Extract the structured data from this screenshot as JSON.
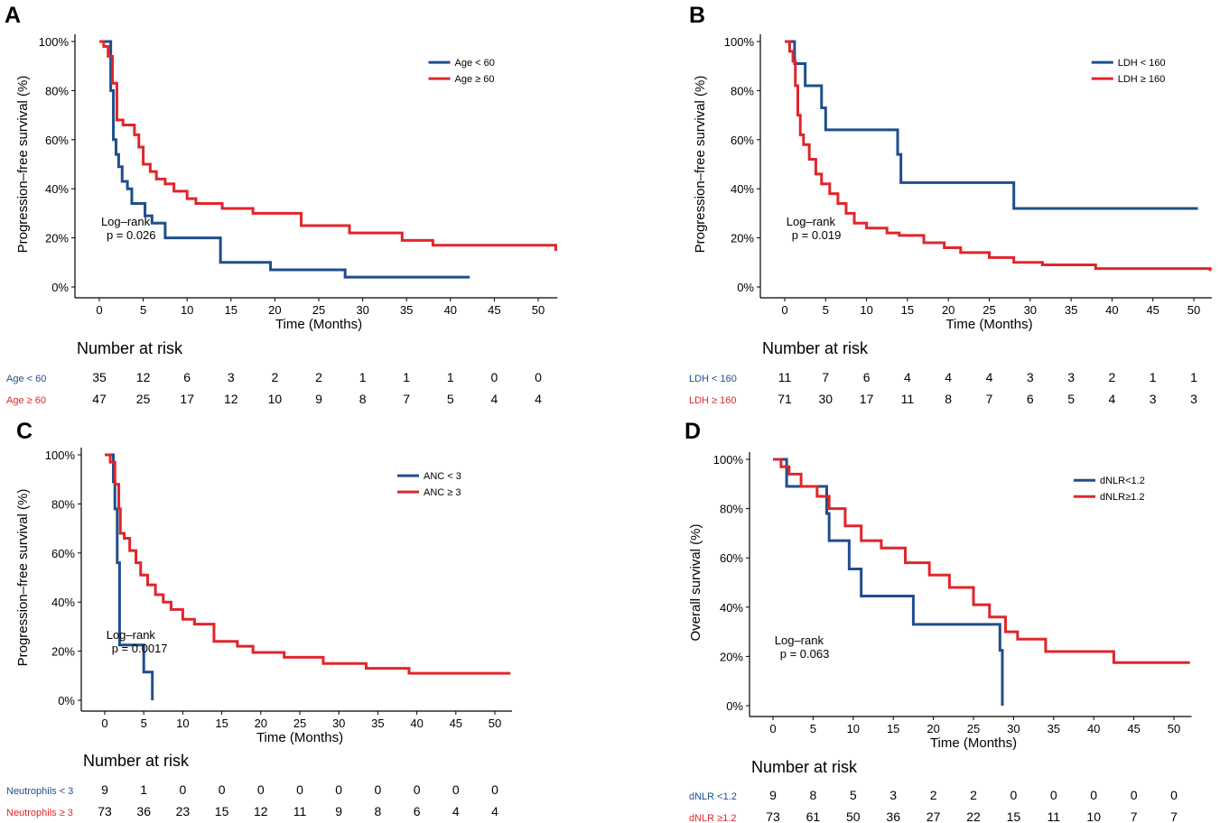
{
  "colors": {
    "blue": "#1f4e8c",
    "red": "#e0262b",
    "axis": "#000000"
  },
  "common": {
    "xlabel": "Time (Months)",
    "risk_title": "Number at risk",
    "x_ticks": [
      "0",
      "5",
      "10",
      "15",
      "20",
      "25",
      "30",
      "35",
      "40",
      "45",
      "50"
    ],
    "y_ticks": [
      "0%",
      "20%",
      "40%",
      "60%",
      "80%",
      "100%"
    ],
    "logrank_label": "Log–rank"
  },
  "chart_data": [
    {
      "panel_letter": "A",
      "type": "line",
      "title": "",
      "xlabel": "Time (Months)",
      "ylabel": "Progression–free survival (%)",
      "xlim": [
        -2,
        52
      ],
      "ylim": [
        0,
        100
      ],
      "legend_position": "top-right",
      "pvalue": "p = 0.026",
      "series": [
        {
          "name": "Age < 60",
          "risk_label": "Age < 60",
          "color": "#1f4e8c",
          "x": [
            0,
            1.3,
            1.6,
            1.9,
            2.2,
            2.6,
            3.2,
            3.7,
            4.2,
            5.2,
            6.0,
            7.5,
            13.8,
            19.5,
            28.0,
            42.2
          ],
          "y": [
            100,
            80,
            60,
            54,
            49,
            43,
            40,
            34,
            34,
            29,
            26,
            20,
            10,
            7,
            4,
            4
          ],
          "risk": [
            "35",
            "12",
            "6",
            "3",
            "2",
            "2",
            "1",
            "1",
            "1",
            "0",
            "0"
          ]
        },
        {
          "name": "Age ≥ 60",
          "risk_label": "Age ≥ 60",
          "color": "#e0262b",
          "x": [
            0,
            0.5,
            1.0,
            1.5,
            2.0,
            2.7,
            4.0,
            4.5,
            5.0,
            5.8,
            6.5,
            7.5,
            8.5,
            10.0,
            11.0,
            14.0,
            17.5,
            23.0,
            28.5,
            34.5,
            38.0,
            52.0
          ],
          "y": [
            100,
            98,
            94,
            83,
            68,
            66,
            62,
            57,
            50,
            47,
            44,
            42,
            39,
            36,
            34,
            32,
            30,
            25,
            22,
            19,
            17,
            14.7
          ],
          "risk": [
            "47",
            "25",
            "17",
            "12",
            "10",
            "9",
            "8",
            "7",
            "5",
            "4",
            "4"
          ]
        }
      ]
    },
    {
      "panel_letter": "B",
      "type": "line",
      "title": "",
      "xlabel": "Time (Months)",
      "ylabel": "Progression–free survival (%)",
      "xlim": [
        -2,
        52
      ],
      "ylim": [
        0,
        100
      ],
      "legend_position": "top-right",
      "pvalue": "p = 0.019",
      "series": [
        {
          "name": "LDH < 160",
          "risk_label": "LDH < 160",
          "color": "#1f4e8c",
          "x": [
            0,
            1.2,
            2.5,
            4.5,
            5.0,
            13.8,
            14.2,
            28.0,
            50.5
          ],
          "y": [
            100,
            91,
            82,
            73,
            64,
            54,
            42.5,
            32,
            32
          ],
          "risk": [
            "11",
            "7",
            "6",
            "4",
            "4",
            "4",
            "3",
            "3",
            "2",
            "1",
            "1"
          ]
        },
        {
          "name": "LDH ≥ 160",
          "risk_label": "LDH ≥ 160",
          "color": "#e0262b",
          "x": [
            0,
            0.6,
            1.0,
            1.3,
            1.6,
            1.9,
            2.3,
            3.0,
            3.8,
            4.5,
            5.5,
            6.5,
            7.5,
            8.5,
            10.0,
            12.5,
            14.0,
            17.0,
            19.5,
            21.5,
            25.0,
            28.0,
            31.5,
            38.0,
            52.0
          ],
          "y": [
            100,
            96,
            92,
            82,
            70,
            62,
            58,
            52,
            46,
            42,
            38,
            34,
            30,
            26,
            24,
            22,
            21,
            18,
            16,
            14,
            12,
            10,
            9,
            7.5,
            6.5
          ],
          "risk": [
            "71",
            "30",
            "17",
            "11",
            "8",
            "7",
            "6",
            "5",
            "4",
            "3",
            "3"
          ]
        }
      ]
    },
    {
      "panel_letter": "C",
      "type": "line",
      "title": "",
      "xlabel": "Time (Months)",
      "ylabel": "Progression–free survival (%)",
      "xlim": [
        -2,
        52
      ],
      "ylim": [
        0,
        100
      ],
      "legend_position": "top-right",
      "pvalue": "p = 0.0017",
      "series": [
        {
          "name": "ANC < 3",
          "risk_label": "Neutrophils < 3",
          "color": "#1f4e8c",
          "x": [
            0,
            1.1,
            1.3,
            1.6,
            1.9,
            5.0,
            6.0,
            6.1
          ],
          "y": [
            100,
            89,
            78,
            56,
            22.5,
            11.5,
            11.5,
            0
          ],
          "risk": [
            "9",
            "1",
            "0",
            "0",
            "0",
            "0",
            "0",
            "0",
            "0",
            "0",
            "0"
          ]
        },
        {
          "name": "ANC ≥ 3",
          "risk_label": "Neutrophils ≥ 3",
          "color": "#e0262b",
          "x": [
            0,
            0.7,
            1.3,
            1.8,
            2.0,
            2.5,
            3.2,
            4.0,
            4.6,
            5.5,
            6.5,
            7.5,
            8.5,
            10.0,
            11.5,
            14.0,
            17.0,
            19.0,
            23.0,
            28.0,
            33.5,
            39.0,
            52.0
          ],
          "y": [
            100,
            97,
            88,
            78,
            68,
            66,
            61,
            56,
            51,
            47,
            43,
            40,
            37,
            33,
            31,
            24,
            22,
            19.5,
            17.5,
            15,
            13,
            11,
            11
          ],
          "risk": [
            "73",
            "36",
            "23",
            "15",
            "12",
            "11",
            "9",
            "8",
            "6",
            "4",
            "4"
          ]
        }
      ]
    },
    {
      "panel_letter": "D",
      "type": "line",
      "title": "",
      "xlabel": "Time (Months)",
      "ylabel": "Overall survival (%)",
      "xlim": [
        -2,
        52
      ],
      "ylim": [
        0,
        100
      ],
      "legend_position": "top-right",
      "pvalue": "p = 0.063",
      "series": [
        {
          "name": "dNLR<1.2",
          "risk_label": "dNLR <1.2",
          "color": "#1f4e8c",
          "x": [
            0,
            1.7,
            6.7,
            7.0,
            9.5,
            11.0,
            17.5,
            28.3,
            28.6
          ],
          "y": [
            100,
            89,
            78,
            67,
            55.5,
            44.5,
            33,
            22.5,
            0
          ],
          "risk": [
            "9",
            "8",
            "5",
            "3",
            "2",
            "2",
            "0",
            "0",
            "0",
            "0",
            "0"
          ]
        },
        {
          "name": "dNLR≥1.2",
          "risk_label": "dNLR ≥1.2",
          "color": "#e0262b",
          "x": [
            0,
            1.0,
            2.0,
            3.5,
            5.5,
            7.0,
            9.0,
            11.0,
            13.5,
            16.5,
            19.5,
            22.0,
            25.0,
            27.0,
            29.0,
            30.5,
            34.0,
            42.5,
            52.0
          ],
          "y": [
            100,
            97,
            94,
            89,
            85,
            80,
            73,
            67,
            64,
            58,
            53,
            48,
            41,
            36,
            30,
            27,
            22,
            17.5,
            17.5
          ],
          "risk": [
            "73",
            "61",
            "50",
            "36",
            "27",
            "22",
            "15",
            "11",
            "10",
            "7",
            "7"
          ]
        }
      ]
    }
  ]
}
